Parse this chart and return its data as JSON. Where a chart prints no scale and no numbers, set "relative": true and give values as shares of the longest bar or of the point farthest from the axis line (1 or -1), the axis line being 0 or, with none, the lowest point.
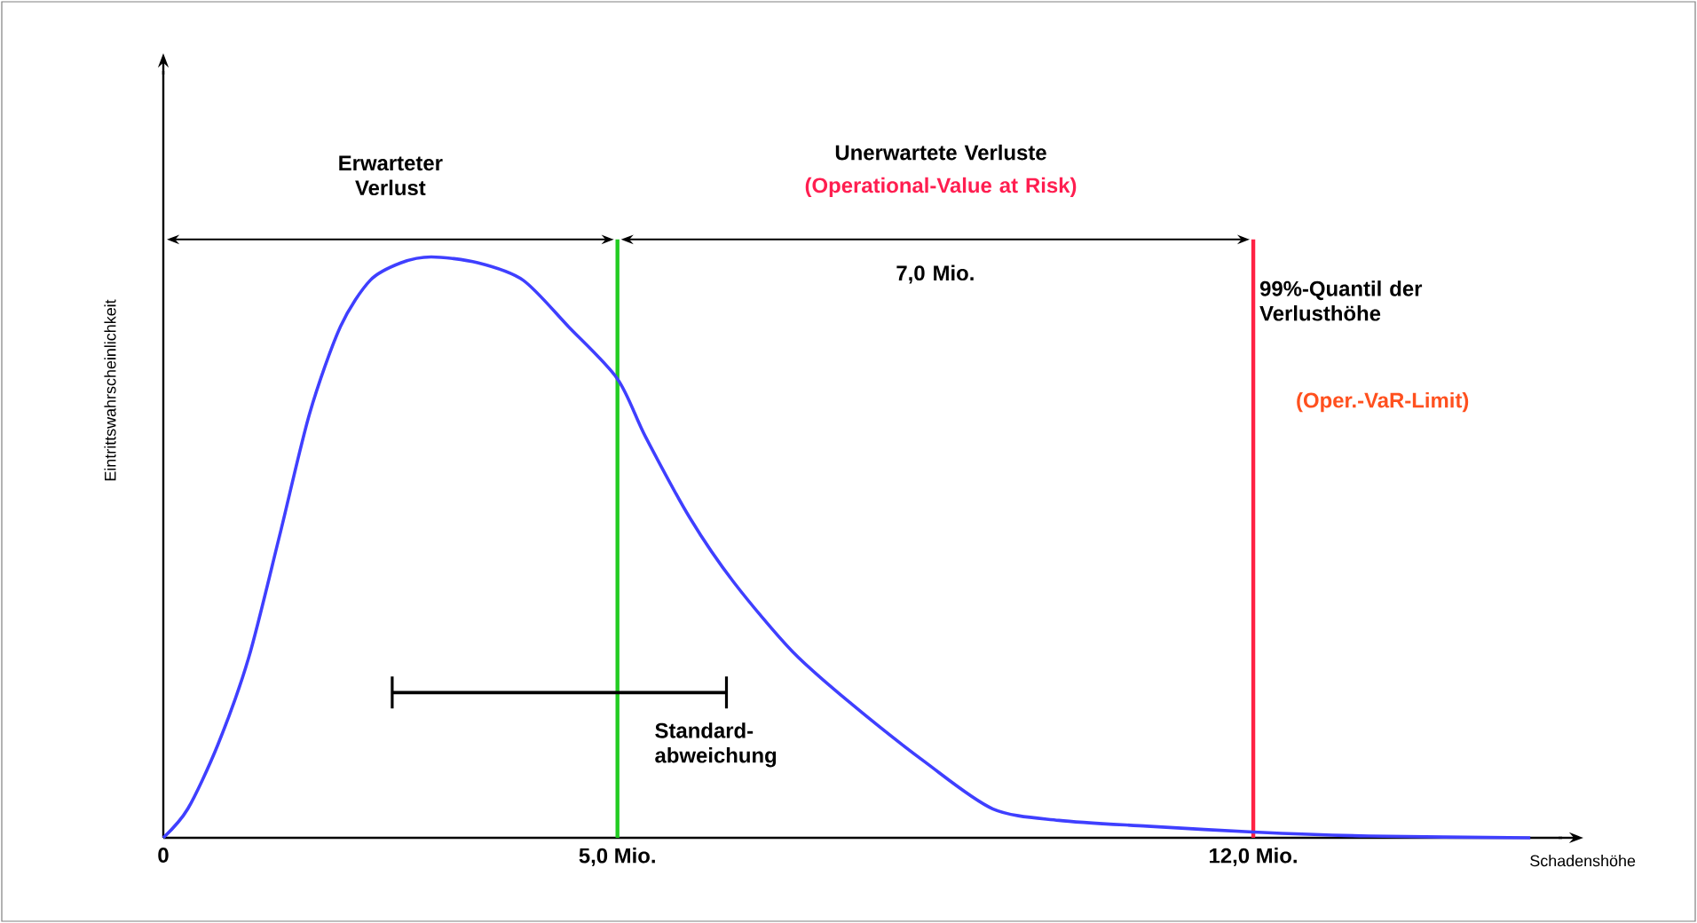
{
  "chart_data": {
    "type": "line",
    "relative": true,
    "xlabel": "Schadenshöhe",
    "ylabel": "Eintrittswahrscheinlichkeit",
    "x": [
      0,
      0.27,
      0.6,
      0.94,
      1.28,
      1.61,
      1.95,
      2.28,
      2.62,
      2.95,
      3.46,
      3.96,
      4.46,
      5.0,
      5.31,
      5.8,
      6.28,
      6.93,
      7.58,
      8.39,
      9.13,
      9.86,
      10.83,
      12.0,
      13.27,
      15.05
    ],
    "series": [
      {
        "color": "#3f3fff",
        "values": [
          0,
          0.05,
          0.16,
          0.31,
          0.52,
          0.73,
          0.88,
          0.96,
          0.99,
          1,
          0.99,
          0.96,
          0.88,
          0.79,
          0.69,
          0.55,
          0.44,
          0.32,
          0.23,
          0.13,
          0.05,
          0.03,
          0.02,
          0.01,
          0.003,
          0
        ]
      },
      {
        "type": "line",
        "color": "#000000",
        "x": [
          2.52,
          6.2
        ],
        "values": [
          0.25,
          0.25
        ]
      }
    ],
    "xlim": [
      0,
      15.4
    ],
    "xticks": [
      0,
      {
        "value": 5,
        "label": "5,0 Mio."
      },
      {
        "value": 12,
        "label": "12,0 Mio."
      }
    ],
    "ref_lines": [
      {
        "axis": "x",
        "value": 5,
        "color": "#22cc22"
      },
      {
        "axis": "x",
        "value": 12,
        "color": "#ff2244",
        "label": "99%-Quantil der Verlusthöhe"
      }
    ],
    "annotations": [
      "Erwarteter Verlust",
      "Unerwartete Verluste",
      "(Operational-Value at Risk)",
      "7,0 Mio.",
      "(Oper.-VaR-Limit)",
      "Standard-abweichung"
    ],
    "grid": false,
    "marker": "none",
    "line_style": "solid"
  }
}
